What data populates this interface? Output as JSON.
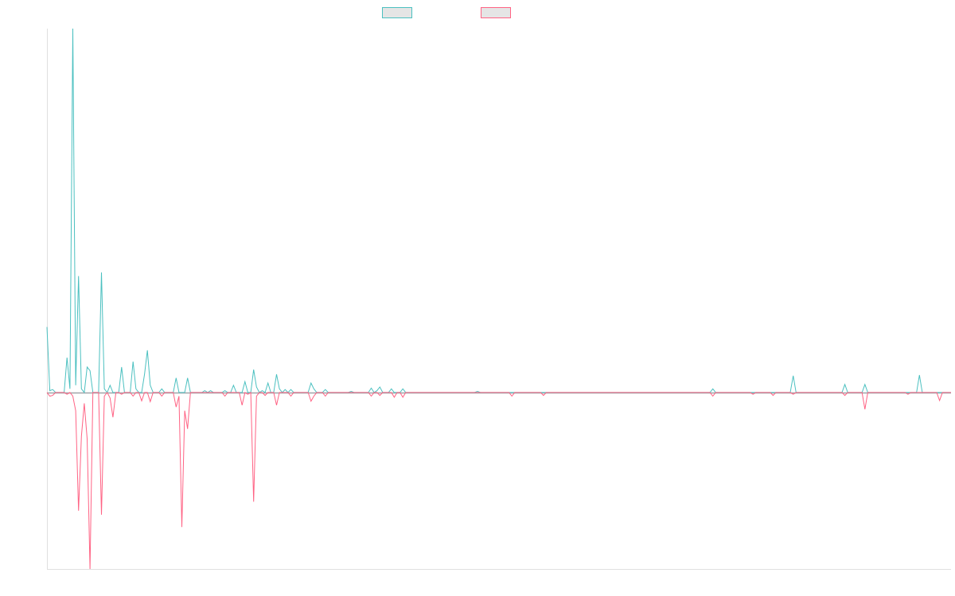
{
  "chart_data": {
    "type": "line",
    "title": "",
    "xlabel": "",
    "ylabel": "",
    "x_count": 316,
    "ylim": [
      -48.5,
      100
    ],
    "grid": false,
    "legend_position": "top",
    "series": [
      {
        "color": "#4bc0c0",
        "points": [
          [
            0,
            18
          ],
          [
            1,
            0.5
          ],
          [
            2,
            0.8
          ],
          [
            7,
            9.6
          ],
          [
            8,
            1
          ],
          [
            9,
            100
          ],
          [
            10,
            2
          ],
          [
            11,
            32
          ],
          [
            12,
            1
          ],
          [
            14,
            7
          ],
          [
            15,
            6
          ],
          [
            19,
            33
          ],
          [
            20,
            1
          ],
          [
            22,
            2
          ],
          [
            26,
            7
          ],
          [
            30,
            8.5
          ],
          [
            31,
            1
          ],
          [
            34,
            5
          ],
          [
            35,
            11.6
          ],
          [
            36,
            2
          ],
          [
            40,
            1
          ],
          [
            45,
            4
          ],
          [
            49,
            4
          ],
          [
            55,
            0.5
          ],
          [
            57,
            0.5
          ],
          [
            62,
            0.5
          ],
          [
            65,
            2
          ],
          [
            69,
            3
          ],
          [
            72,
            6.3
          ],
          [
            73,
            1.5
          ],
          [
            75,
            0.5
          ],
          [
            77,
            2.6
          ],
          [
            80,
            5
          ],
          [
            81,
            1
          ],
          [
            83,
            0.8
          ],
          [
            85,
            0.8
          ],
          [
            92,
            2.6
          ],
          [
            93,
            1
          ],
          [
            97,
            0.8
          ],
          [
            106,
            0.3
          ],
          [
            113,
            1.2
          ],
          [
            115,
            0.5
          ],
          [
            116,
            1.5
          ],
          [
            120,
            1
          ],
          [
            124,
            1
          ],
          [
            150,
            0.3
          ],
          [
            232,
            1
          ],
          [
            260,
            4.6
          ],
          [
            278,
            2.2
          ],
          [
            285,
            2.2
          ],
          [
            304,
            4.8
          ]
        ]
      },
      {
        "color": "#ff6384",
        "points": [
          [
            1,
            -1
          ],
          [
            2,
            -0.8
          ],
          [
            7,
            -0.5
          ],
          [
            9,
            -1
          ],
          [
            10,
            -5
          ],
          [
            11,
            -32.5
          ],
          [
            12,
            -12
          ],
          [
            13,
            -3
          ],
          [
            14,
            -12.7
          ],
          [
            15,
            -48.5
          ],
          [
            19,
            -33.6
          ],
          [
            20,
            -1
          ],
          [
            22,
            -1.5
          ],
          [
            23,
            -6.8
          ],
          [
            26,
            -0.5
          ],
          [
            30,
            -1
          ],
          [
            33,
            -2.3
          ],
          [
            36,
            -2.5
          ],
          [
            40,
            -1
          ],
          [
            45,
            -4
          ],
          [
            46,
            -1
          ],
          [
            47,
            -37
          ],
          [
            48,
            -5
          ],
          [
            49,
            -10
          ],
          [
            62,
            -1
          ],
          [
            68,
            -3.5
          ],
          [
            70,
            -0.5
          ],
          [
            72,
            -30
          ],
          [
            73,
            -1
          ],
          [
            76,
            -0.8
          ],
          [
            80,
            -3.5
          ],
          [
            85,
            -1
          ],
          [
            92,
            -2.4
          ],
          [
            93,
            -1
          ],
          [
            97,
            -1
          ],
          [
            113,
            -1
          ],
          [
            116,
            -0.8
          ],
          [
            121,
            -1.3
          ],
          [
            124,
            -1.3
          ],
          [
            162,
            -1
          ],
          [
            173,
            -0.8
          ],
          [
            232,
            -1
          ],
          [
            246,
            -0.5
          ],
          [
            253,
            -0.8
          ],
          [
            260,
            -0.5
          ],
          [
            278,
            -0.8
          ],
          [
            285,
            -4.6
          ],
          [
            300,
            -0.5
          ],
          [
            311,
            -2.2
          ]
        ]
      }
    ]
  }
}
